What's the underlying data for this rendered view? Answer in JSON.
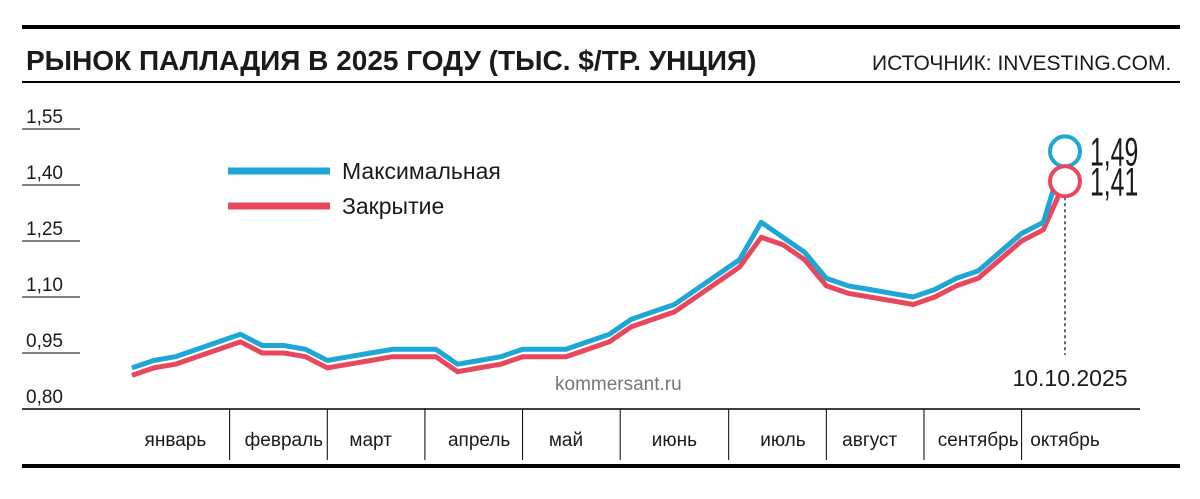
{
  "chart_data": {
    "type": "line",
    "title": "РЫНОК ПАЛЛАДИЯ В 2025 ГОДУ (ТЫС. $/ТР. УНЦИЯ)",
    "source": "ИСТОЧНИК: INVESTING.COM.",
    "watermark": "kommersant.ru",
    "annotation": "10.10.2025",
    "categories": [
      null,
      null,
      "январь",
      null,
      null,
      null,
      null,
      "февраль",
      null,
      null,
      null,
      "март",
      null,
      null,
      null,
      null,
      "апрель",
      null,
      null,
      null,
      "май",
      null,
      null,
      null,
      null,
      "июнь",
      null,
      null,
      null,
      null,
      "июль",
      null,
      null,
      null,
      "август",
      null,
      null,
      null,
      null,
      "сентябрь",
      null,
      null,
      null,
      "октябрь"
    ],
    "series": [
      {
        "name": "Максимальная",
        "color": "#1ea7d6",
        "values": [
          0.91,
          0.93,
          0.94,
          0.96,
          0.98,
          1.0,
          0.97,
          0.97,
          0.96,
          0.93,
          0.94,
          0.95,
          0.96,
          0.96,
          0.96,
          0.92,
          0.93,
          0.94,
          0.96,
          0.96,
          0.96,
          0.98,
          1.0,
          1.04,
          1.06,
          1.08,
          1.12,
          1.16,
          1.2,
          1.3,
          1.26,
          1.22,
          1.15,
          1.13,
          1.12,
          1.11,
          1.1,
          1.12,
          1.15,
          1.17,
          1.22,
          1.27,
          1.3,
          1.49
        ],
        "value_labels": [
          null,
          null,
          null,
          null,
          null,
          null,
          null,
          null,
          null,
          null,
          null,
          null,
          null,
          null,
          null,
          null,
          null,
          null,
          null,
          null,
          null,
          null,
          null,
          null,
          null,
          null,
          null,
          null,
          null,
          null,
          null,
          null,
          null,
          null,
          null,
          null,
          null,
          null,
          null,
          null,
          null,
          null,
          null,
          "1,49"
        ]
      },
      {
        "name": "Закрытие",
        "color": "#e8485e",
        "values": [
          0.89,
          0.91,
          0.92,
          0.94,
          0.96,
          0.98,
          0.95,
          0.95,
          0.94,
          0.91,
          0.92,
          0.93,
          0.94,
          0.94,
          0.94,
          0.9,
          0.91,
          0.92,
          0.94,
          0.94,
          0.94,
          0.96,
          0.98,
          1.02,
          1.04,
          1.06,
          1.1,
          1.14,
          1.18,
          1.26,
          1.24,
          1.2,
          1.13,
          1.11,
          1.1,
          1.09,
          1.08,
          1.1,
          1.13,
          1.15,
          1.2,
          1.25,
          1.28,
          1.41
        ],
        "value_labels": [
          null,
          null,
          null,
          null,
          null,
          null,
          null,
          null,
          null,
          null,
          null,
          null,
          null,
          null,
          null,
          null,
          null,
          null,
          null,
          null,
          null,
          null,
          null,
          null,
          null,
          null,
          null,
          null,
          null,
          null,
          null,
          null,
          null,
          null,
          null,
          null,
          null,
          null,
          null,
          null,
          null,
          null,
          null,
          "1,41"
        ]
      }
    ],
    "ylim": [
      0.8,
      1.55
    ],
    "yticks": [
      {
        "value": 0.8,
        "label": "0,80"
      },
      {
        "value": 0.95,
        "label": "0,95"
      },
      {
        "value": 1.1,
        "label": "1,10"
      },
      {
        "value": 1.25,
        "label": "1,25"
      },
      {
        "value": 1.4,
        "label": "1,40"
      },
      {
        "value": 1.55,
        "label": "1,55"
      }
    ]
  }
}
